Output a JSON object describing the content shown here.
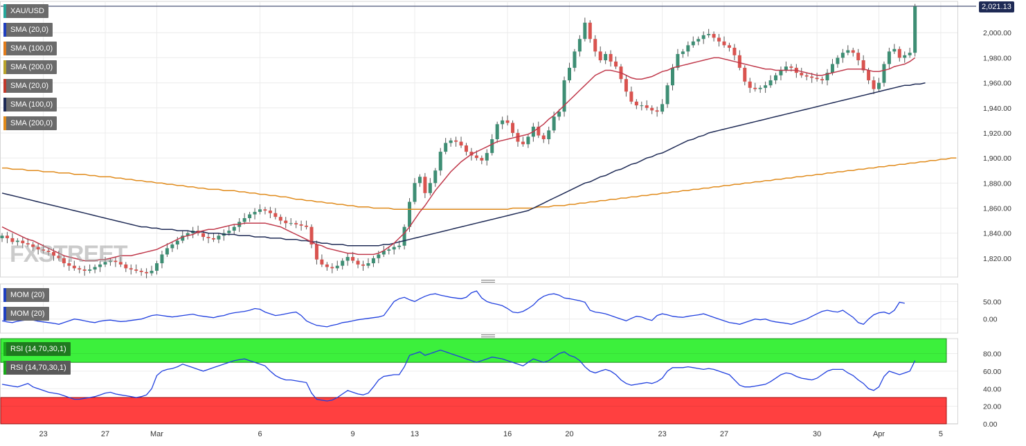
{
  "watermark": {
    "prefix": "FX",
    "x": "X",
    "rest": "STREET"
  },
  "price_badge": "2,021.13",
  "main_labels": [
    {
      "text": "XAU/USD",
      "color": "#26a69a"
    },
    {
      "text": "SMA (20,0)",
      "color": "#1f3fbf"
    },
    {
      "text": "SMA (100,0)",
      "color": "#e07a1a"
    },
    {
      "text": "SMA (200,0)",
      "color": "#b8a22a"
    },
    {
      "text": "SMA (20,0)",
      "color": "#c0392b"
    },
    {
      "text": "SMA (100,0)",
      "color": "#1e2a55"
    },
    {
      "text": "SMA (200,0)",
      "color": "#e08a1a"
    }
  ],
  "mom_labels": [
    {
      "text": "MOM (20)",
      "color": "#1f3fbf"
    },
    {
      "text": "MOM (20)",
      "color": "#1f3fbf"
    }
  ],
  "rsi_labels": [
    {
      "text": "RSI (14,70,30,1)",
      "color": "#1aa81a"
    },
    {
      "text": "RSI (14,70,30,1)",
      "color": "#1aa81a"
    }
  ],
  "chart_data": {
    "type": "candlestick",
    "symbol": "XAU/USD",
    "last_price": 2021.13,
    "price_axis": {
      "ylim": [
        1805,
        2025
      ],
      "ticks": [
        "2,000.00",
        "1,980.00",
        "1,960.00",
        "1,940.00",
        "1,920.00",
        "1,900.00",
        "1,880.00",
        "1,860.00",
        "1,840.00",
        "1,820.00"
      ],
      "tick_values": [
        2000,
        1980,
        1960,
        1940,
        1920,
        1900,
        1880,
        1860,
        1840,
        1820
      ]
    },
    "x_ticks": [
      {
        "label": "23",
        "i": 8
      },
      {
        "label": "27",
        "i": 20
      },
      {
        "label": "Mar",
        "i": 30
      },
      {
        "label": "6",
        "i": 50
      },
      {
        "label": "9",
        "i": 68
      },
      {
        "label": "13",
        "i": 80
      },
      {
        "label": "16",
        "i": 98
      },
      {
        "label": "20",
        "i": 110
      },
      {
        "label": "23",
        "i": 128
      },
      {
        "label": "27",
        "i": 140
      },
      {
        "label": "30",
        "i": 158
      },
      {
        "label": "Apr",
        "i": 170
      },
      {
        "label": "5",
        "i": 182
      }
    ],
    "close": [
      1838,
      1836,
      1833,
      1834,
      1832,
      1831,
      1829,
      1827,
      1826,
      1825,
      1822,
      1820,
      1816,
      1814,
      1812,
      1811,
      1810,
      1811,
      1813,
      1815,
      1817,
      1818,
      1817,
      1815,
      1812,
      1811,
      1810,
      1809,
      1808,
      1810,
      1816,
      1823,
      1828,
      1831,
      1834,
      1838,
      1840,
      1842,
      1840,
      1837,
      1836,
      1835,
      1838,
      1840,
      1842,
      1845,
      1849,
      1852,
      1855,
      1857,
      1859,
      1858,
      1856,
      1853,
      1850,
      1848,
      1848,
      1847,
      1846,
      1845,
      1831,
      1819,
      1815,
      1813,
      1812,
      1814,
      1818,
      1821,
      1818,
      1815,
      1814,
      1816,
      1820,
      1823,
      1826,
      1827,
      1829,
      1830,
      1845,
      1865,
      1880,
      1885,
      1872,
      1880,
      1890,
      1905,
      1912,
      1914,
      1913,
      1910,
      1905,
      1902,
      1900,
      1898,
      1904,
      1915,
      1927,
      1930,
      1928,
      1920,
      1913,
      1911,
      1917,
      1925,
      1918,
      1915,
      1922,
      1933,
      1937,
      1962,
      1972,
      1985,
      1995,
      2008,
      1995,
      1985,
      1978,
      1983,
      1977,
      1973,
      1963,
      1953,
      1945,
      1942,
      1942,
      1940,
      1938,
      1937,
      1943,
      1958,
      1972,
      1983,
      1985,
      1990,
      1993,
      1995,
      1998,
      1999,
      1996,
      1993,
      1990,
      1988,
      1982,
      1972,
      1961,
      1956,
      1955,
      1956,
      1958,
      1962,
      1966,
      1970,
      1973,
      1972,
      1968,
      1966,
      1965,
      1964,
      1963,
      1962,
      1968,
      1975,
      1980,
      1984,
      1986,
      1984,
      1978,
      1970,
      1962,
      1955,
      1960,
      1975,
      1985,
      1987,
      1980,
      1982,
      1984,
      2021
    ],
    "sma20": [
      1845,
      1843,
      1841,
      1839,
      1837,
      1835,
      1834,
      1832,
      1830,
      1828,
      1826,
      1824,
      1822,
      1821,
      1820,
      1819,
      1818,
      1818,
      1818,
      1819,
      1819,
      1820,
      1821,
      1822,
      1822,
      1822,
      1823,
      1824,
      1825,
      1826,
      1827,
      1829,
      1831,
      1833,
      1835,
      1837,
      1838,
      1839,
      1841,
      1842,
      1843,
      1843,
      1844,
      1845,
      1846,
      1847,
      1847,
      1848,
      1848,
      1848,
      1848,
      1848,
      1847,
      1846,
      1845,
      1843,
      1841,
      1839,
      1837,
      1835,
      1833,
      1831,
      1830,
      1828,
      1827,
      1826,
      1825,
      1824,
      1824,
      1823,
      1823,
      1823,
      1823,
      1824,
      1826,
      1829,
      1832,
      1836,
      1840,
      1845,
      1851,
      1857,
      1862,
      1868,
      1874,
      1879,
      1884,
      1889,
      1893,
      1897,
      1900,
      1903,
      1905,
      1907,
      1909,
      1911,
      1913,
      1914,
      1915,
      1916,
      1917,
      1918,
      1919,
      1921,
      1924,
      1927,
      1931,
      1934,
      1938,
      1942,
      1946,
      1950,
      1954,
      1958,
      1962,
      1966,
      1968,
      1970,
      1970,
      1969,
      1968,
      1966,
      1964,
      1963,
      1963,
      1964,
      1965,
      1967,
      1969,
      1970,
      1972,
      1973,
      1974,
      1975,
      1976,
      1977,
      1978,
      1979,
      1980,
      1980,
      1979,
      1978,
      1977,
      1976,
      1975,
      1974,
      1973,
      1972,
      1971,
      1971,
      1970,
      1970,
      1970,
      1970,
      1970,
      1969,
      1968,
      1967,
      1966,
      1966,
      1967,
      1968,
      1969,
      1970,
      1971,
      1971,
      1971,
      1971,
      1970,
      1969,
      1969,
      1970,
      1971,
      1973,
      1974,
      1975,
      1977,
      1980
    ],
    "sma100": [
      1872,
      1871,
      1870,
      1869,
      1868,
      1867,
      1866,
      1865,
      1864,
      1863,
      1862,
      1861,
      1860,
      1859,
      1858,
      1857,
      1856,
      1855,
      1854,
      1853,
      1852,
      1851,
      1850,
      1849,
      1848,
      1847,
      1846,
      1845,
      1845,
      1844,
      1844,
      1843,
      1843,
      1843,
      1842,
      1842,
      1842,
      1841,
      1841,
      1841,
      1840,
      1840,
      1840,
      1839,
      1839,
      1839,
      1838,
      1838,
      1838,
      1837,
      1837,
      1837,
      1836,
      1836,
      1836,
      1835,
      1835,
      1835,
      1834,
      1834,
      1833,
      1833,
      1832,
      1832,
      1831,
      1831,
      1831,
      1830,
      1830,
      1830,
      1830,
      1830,
      1830,
      1830,
      1831,
      1831,
      1832,
      1833,
      1834,
      1835,
      1836,
      1837,
      1838,
      1839,
      1840,
      1841,
      1842,
      1843,
      1844,
      1845,
      1846,
      1847,
      1848,
      1849,
      1850,
      1851,
      1852,
      1853,
      1854,
      1855,
      1856,
      1857,
      1858,
      1860,
      1862,
      1864,
      1866,
      1868,
      1870,
      1872,
      1874,
      1876,
      1878,
      1880,
      1881,
      1883,
      1885,
      1886,
      1888,
      1890,
      1891,
      1893,
      1895,
      1896,
      1898,
      1900,
      1901,
      1903,
      1904,
      1906,
      1908,
      1910,
      1912,
      1914,
      1915,
      1917,
      1918,
      1920,
      1921,
      1922,
      1923,
      1924,
      1925,
      1926,
      1927,
      1928,
      1929,
      1930,
      1931,
      1932,
      1933,
      1934,
      1935,
      1936,
      1937,
      1938,
      1939,
      1940,
      1941,
      1942,
      1943,
      1944,
      1945,
      1946,
      1947,
      1948,
      1949,
      1950,
      1951,
      1952,
      1953,
      1954,
      1955,
      1956,
      1957,
      1958,
      1958,
      1959,
      1959,
      1960
    ],
    "sma200": [
      1892,
      1892,
      1891,
      1891,
      1891,
      1890,
      1890,
      1890,
      1889,
      1889,
      1889,
      1888,
      1888,
      1888,
      1887,
      1887,
      1887,
      1886,
      1886,
      1885,
      1885,
      1885,
      1884,
      1884,
      1883,
      1883,
      1882,
      1882,
      1881,
      1881,
      1880,
      1880,
      1879,
      1879,
      1878,
      1878,
      1877,
      1877,
      1876,
      1876,
      1875,
      1875,
      1875,
      1874,
      1874,
      1874,
      1873,
      1873,
      1872,
      1872,
      1871,
      1871,
      1870,
      1870,
      1869,
      1869,
      1868,
      1867,
      1867,
      1866,
      1866,
      1865,
      1865,
      1864,
      1864,
      1863,
      1863,
      1862,
      1862,
      1861,
      1861,
      1861,
      1860,
      1860,
      1860,
      1860,
      1859,
      1859,
      1859,
      1859,
      1859,
      1859,
      1859,
      1859,
      1859,
      1859,
      1859,
      1859,
      1859,
      1859,
      1859,
      1859,
      1859,
      1859,
      1859,
      1859,
      1859,
      1859,
      1859,
      1860,
      1860,
      1860,
      1860,
      1860,
      1861,
      1861,
      1861,
      1862,
      1862,
      1862,
      1863,
      1863,
      1864,
      1864,
      1865,
      1865,
      1866,
      1866,
      1867,
      1867,
      1868,
      1868,
      1869,
      1869,
      1870,
      1870,
      1871,
      1871,
      1872,
      1872,
      1873,
      1873,
      1874,
      1874,
      1875,
      1875,
      1876,
      1876,
      1877,
      1877,
      1878,
      1878,
      1879,
      1879,
      1880,
      1880,
      1881,
      1881,
      1882,
      1882,
      1883,
      1883,
      1884,
      1884,
      1885,
      1885,
      1886,
      1886,
      1887,
      1887,
      1888,
      1888,
      1889,
      1889,
      1890,
      1890,
      1891,
      1891,
      1892,
      1892,
      1893,
      1893,
      1894,
      1894,
      1895,
      1895,
      1896,
      1896,
      1897,
      1897,
      1898,
      1898,
      1899,
      1899,
      1900,
      1900
    ],
    "momentum": {
      "ticks": [
        "50.00",
        "0.00"
      ],
      "tick_values": [
        50,
        0
      ],
      "ylim": [
        -40,
        100
      ],
      "values": [
        -5,
        -8,
        -10,
        -6,
        -4,
        -2,
        -3,
        -6,
        -8,
        -10,
        -12,
        -15,
        -10,
        -5,
        0,
        -2,
        -5,
        -8,
        -10,
        -6,
        -4,
        -3,
        -5,
        -7,
        -6,
        -4,
        -2,
        0,
        5,
        10,
        12,
        10,
        8,
        6,
        8,
        10,
        12,
        14,
        10,
        8,
        6,
        4,
        8,
        10,
        15,
        18,
        20,
        22,
        25,
        30,
        28,
        20,
        15,
        10,
        12,
        15,
        18,
        20,
        10,
        -5,
        -12,
        -18,
        -20,
        -22,
        -18,
        -15,
        -10,
        -8,
        -5,
        -2,
        0,
        2,
        4,
        6,
        10,
        30,
        50,
        58,
        62,
        55,
        50,
        58,
        65,
        70,
        72,
        68,
        65,
        62,
        60,
        58,
        62,
        75,
        80,
        60,
        50,
        45,
        42,
        38,
        30,
        20,
        18,
        22,
        30,
        40,
        55,
        65,
        70,
        72,
        68,
        60,
        58,
        55,
        52,
        48,
        25,
        20,
        18,
        15,
        10,
        5,
        0,
        -5,
        2,
        8,
        6,
        0,
        -4,
        10,
        15,
        12,
        8,
        6,
        5,
        8,
        10,
        12,
        15,
        10,
        5,
        0,
        -5,
        -10,
        -12,
        -15,
        -10,
        -5,
        0,
        -2,
        0,
        -5,
        -8,
        -10,
        -12,
        -15,
        -10,
        -5,
        0,
        8,
        15,
        22,
        25,
        22,
        20,
        25,
        15,
        5,
        -10,
        -15,
        0,
        12,
        18,
        20,
        15,
        25,
        48,
        45
      ]
    },
    "rsi": {
      "ticks": [
        "80.00",
        "60.00",
        "40.00",
        "20.00",
        "0.00"
      ],
      "tick_values": [
        80,
        60,
        40,
        20,
        0
      ],
      "ylim": [
        0,
        97
      ],
      "overbought": 70,
      "oversold": 30,
      "values": [
        45,
        44,
        43,
        42,
        44,
        46,
        42,
        40,
        38,
        36,
        35,
        34,
        32,
        30,
        28,
        28,
        29,
        30,
        31,
        33,
        35,
        36,
        34,
        33,
        32,
        31,
        30,
        31,
        33,
        40,
        55,
        60,
        62,
        63,
        65,
        68,
        66,
        64,
        62,
        60,
        62,
        64,
        66,
        68,
        70,
        72,
        73,
        74,
        72,
        70,
        68,
        66,
        60,
        55,
        52,
        50,
        50,
        49,
        48,
        47,
        35,
        28,
        27,
        26,
        27,
        30,
        34,
        38,
        36,
        34,
        33,
        35,
        42,
        50,
        54,
        55,
        56,
        56,
        65,
        78,
        80,
        82,
        78,
        80,
        82,
        84,
        82,
        80,
        78,
        76,
        74,
        72,
        70,
        72,
        74,
        76,
        75,
        74,
        72,
        70,
        68,
        66,
        70,
        74,
        72,
        70,
        72,
        76,
        80,
        82,
        78,
        76,
        72,
        65,
        60,
        58,
        60,
        62,
        60,
        56,
        50,
        46,
        44,
        45,
        46,
        47,
        46,
        48,
        52,
        60,
        64,
        64,
        64,
        65,
        64,
        63,
        62,
        63,
        62,
        60,
        58,
        56,
        50,
        44,
        42,
        42,
        43,
        44,
        45,
        48,
        52,
        56,
        58,
        57,
        54,
        52,
        51,
        50,
        52,
        56,
        60,
        62,
        62,
        62,
        58,
        55,
        50,
        46,
        40,
        38,
        42,
        54,
        60,
        58,
        56,
        58,
        60,
        72
      ]
    }
  }
}
